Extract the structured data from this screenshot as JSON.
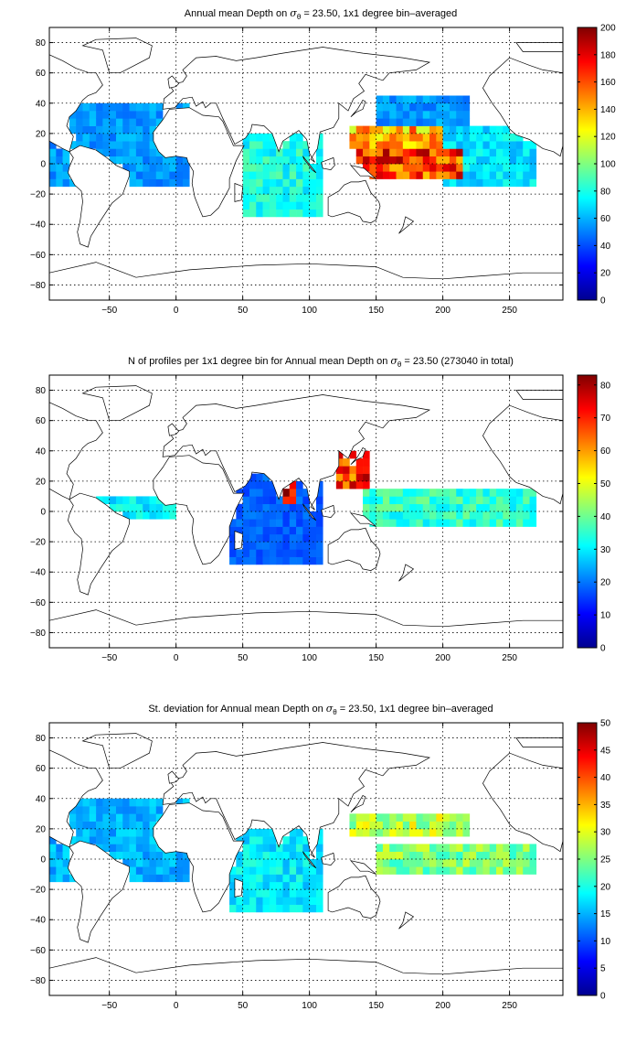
{
  "figure": {
    "panels": [
      {
        "title_pre": "Annual mean Depth on",
        "title_post": " = 23.50, 1x1 degree bin–averaged",
        "sigma_sub": "θ"
      },
      {
        "title_pre": "N of profiles per 1x1 degree bin for Annual mean Depth on",
        "title_post": " = 23.50 (273040 in total)",
        "sigma_sub": "θ"
      },
      {
        "title_pre": "St. deviation for Annual mean Depth on",
        "title_post": " = 23.50, 1x1 degree bin–averaged",
        "sigma_sub": "θ"
      }
    ]
  },
  "chart_data": [
    {
      "type": "heatmap",
      "title": "Annual mean Depth on σθ = 23.50, 1x1 degree bin–averaged",
      "xlim": [
        -95,
        290
      ],
      "ylim": [
        -90,
        90
      ],
      "x_ticks": [
        -50,
        0,
        50,
        100,
        150,
        200,
        250
      ],
      "y_ticks": [
        -80,
        -60,
        -40,
        -20,
        0,
        20,
        40,
        60,
        80
      ],
      "grid": true,
      "colorbar": {
        "min": 0,
        "max": 200,
        "ticks": [
          0,
          20,
          40,
          60,
          80,
          100,
          120,
          140,
          160,
          180,
          200
        ],
        "colormap": "jet"
      },
      "regions": [
        {
          "lon": [
            135,
            215
          ],
          "lat": [
            -10,
            10
          ],
          "value": 165
        },
        {
          "lon": [
            130,
            200
          ],
          "lat": [
            12,
            25
          ],
          "value": 140
        },
        {
          "lon": [
            200,
            270
          ],
          "lat": [
            -15,
            25
          ],
          "value": 70
        },
        {
          "lon": [
            50,
            110
          ],
          "lat": [
            -35,
            20
          ],
          "value": 80
        },
        {
          "lon": [
            -95,
            10
          ],
          "lat": [
            -15,
            40
          ],
          "value": 55
        },
        {
          "lon": [
            150,
            220
          ],
          "lat": [
            25,
            45
          ],
          "value": 55
        }
      ]
    },
    {
      "type": "heatmap",
      "title": "N of profiles per 1x1 degree bin for Annual mean Depth on σθ = 23.50 (273040 in total)",
      "xlim": [
        -95,
        290
      ],
      "ylim": [
        -90,
        90
      ],
      "x_ticks": [
        -50,
        0,
        50,
        100,
        150,
        200,
        250
      ],
      "y_ticks": [
        -80,
        -60,
        -40,
        -20,
        0,
        20,
        40,
        60,
        80
      ],
      "grid": true,
      "colorbar": {
        "min": 0,
        "max": 83,
        "ticks": [
          0,
          10,
          20,
          30,
          40,
          50,
          60,
          70,
          80
        ],
        "colormap": "jet"
      },
      "regions": [
        {
          "lon": [
            120,
            145
          ],
          "lat": [
            15,
            40
          ],
          "value": 70
        },
        {
          "lon": [
            80,
            92
          ],
          "lat": [
            5,
            22
          ],
          "value": 78
        },
        {
          "lon": [
            140,
            270
          ],
          "lat": [
            -10,
            15
          ],
          "value": 35
        },
        {
          "lon": [
            -60,
            0
          ],
          "lat": [
            -5,
            10
          ],
          "value": 30
        },
        {
          "lon": [
            40,
            110
          ],
          "lat": [
            -35,
            25
          ],
          "value": 18
        }
      ],
      "total_profiles": 273040
    },
    {
      "type": "heatmap",
      "title": "St. deviation for Annual mean Depth on σθ = 23.50, 1x1 degree bin–averaged",
      "xlim": [
        -95,
        290
      ],
      "ylim": [
        -90,
        90
      ],
      "x_ticks": [
        -50,
        0,
        50,
        100,
        150,
        200,
        250
      ],
      "y_ticks": [
        -80,
        -60,
        -40,
        -20,
        0,
        20,
        40,
        60,
        80
      ],
      "grid": true,
      "colorbar": {
        "min": 0,
        "max": 50,
        "ticks": [
          0,
          5,
          10,
          15,
          20,
          25,
          30,
          35,
          40,
          45,
          50
        ],
        "colormap": "jet"
      },
      "regions": [
        {
          "lon": [
            130,
            220
          ],
          "lat": [
            15,
            30
          ],
          "value": 28
        },
        {
          "lon": [
            150,
            270
          ],
          "lat": [
            -10,
            10
          ],
          "value": 25
        },
        {
          "lon": [
            40,
            110
          ],
          "lat": [
            -35,
            20
          ],
          "value": 18
        },
        {
          "lon": [
            -95,
            10
          ],
          "lat": [
            -15,
            40
          ],
          "value": 15
        }
      ]
    }
  ]
}
